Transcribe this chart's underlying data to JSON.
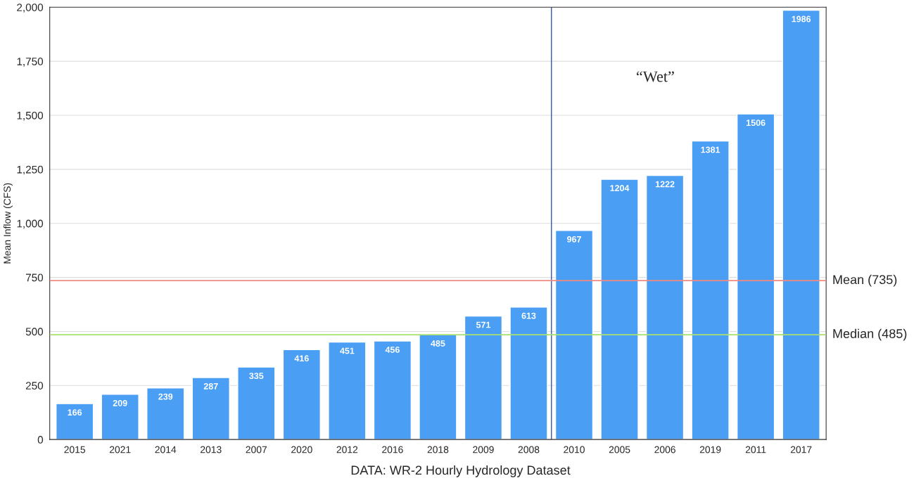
{
  "chart_data": {
    "type": "bar",
    "ylabel": "Mean Inflow (CFS)",
    "categories": [
      "2015",
      "2021",
      "2014",
      "2013",
      "2007",
      "2020",
      "2012",
      "2016",
      "2018",
      "2009",
      "2008",
      "2010",
      "2005",
      "2006",
      "2019",
      "2011",
      "2017"
    ],
    "values": [
      166,
      209,
      239,
      287,
      335,
      416,
      451,
      456,
      485,
      571,
      613,
      967,
      1204,
      1222,
      1381,
      1506,
      1986
    ],
    "color": "#4a9ff5",
    "data_labels": true,
    "ylim": [
      0,
      2000
    ],
    "yticks": [
      0,
      250,
      500,
      750,
      {
        "value": 1000,
        "label": "1,000"
      },
      {
        "value": 1250,
        "label": "1,250"
      },
      {
        "value": 1500,
        "label": "1,500"
      },
      {
        "value": 1750,
        "label": "1,750"
      },
      {
        "value": 2000,
        "label": "2,000"
      }
    ],
    "grid": "y",
    "ref_lines": [
      {
        "axis": "y",
        "value": 735,
        "label": "Mean (735)",
        "color": "#f08a80"
      },
      {
        "axis": "y",
        "value": 485,
        "label": "Median (485)",
        "color": "#a8e070"
      },
      {
        "axis": "x",
        "value": "2010",
        "color": "#3355bb"
      }
    ],
    "annotations": [
      "“Wet”",
      "DATA: WR-2 Hourly Hydrology Dataset"
    ]
  }
}
